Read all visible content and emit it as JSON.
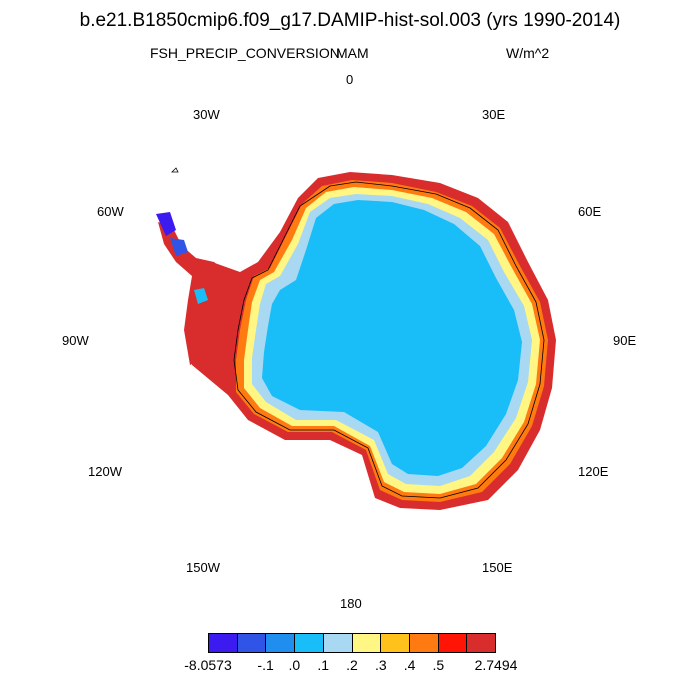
{
  "title": "b.e21.B1850cmip6.f09_g17.DAMIP-hist-sol.003 (yrs 1990-2014)",
  "variable": "FSH_PRECIP_CONVERSION",
  "season": "MAM",
  "units": "W/m^2",
  "longitude_labels": [
    "0",
    "30E",
    "60E",
    "90E",
    "120E",
    "150E",
    "180",
    "150W",
    "120W",
    "90W",
    "60W",
    "30W"
  ],
  "colorbar": {
    "colors": [
      "#3b1bef",
      "#2f54e6",
      "#1f8eee",
      "#19bdf7",
      "#a8d8f2",
      "#fff684",
      "#ffc21c",
      "#ff7a10",
      "#ff1405",
      "#d92d2d"
    ],
    "labels": [
      "-8.0573",
      "-.1",
      ".0",
      ".1",
      ".2",
      ".3",
      ".4",
      ".5",
      "2.7494"
    ]
  }
}
